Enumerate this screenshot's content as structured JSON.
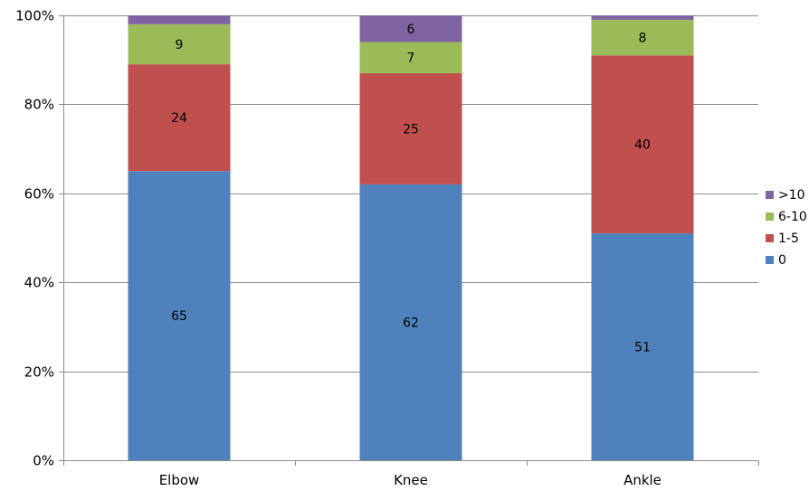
{
  "chart_data": {
    "type": "bar",
    "stacked": true,
    "percent_stacked": true,
    "categories": [
      "Elbow",
      "Knee",
      "Ankle"
    ],
    "series": [
      {
        "name": "0",
        "values": [
          65,
          62,
          51
        ],
        "color": "#4f81bd"
      },
      {
        "name": "1-5",
        "values": [
          24,
          25,
          40
        ],
        "color": "#c0504d"
      },
      {
        "name": "6-10",
        "values": [
          9,
          7,
          8
        ],
        "color": "#9bbb59"
      },
      {
        "name": ">10",
        "values": [
          2,
          6,
          1
        ],
        "color": "#8064a2"
      }
    ],
    "data_labels": [
      [
        "65",
        "62",
        "51"
      ],
      [
        "24",
        "25",
        "40"
      ],
      [
        "9",
        "7",
        "8"
      ],
      [
        "",
        "6",
        ""
      ]
    ],
    "ylim": [
      0,
      100
    ],
    "yticks": [
      "0%",
      "20%",
      "40%",
      "60%",
      "80%",
      "100%"
    ],
    "grid": true,
    "legend_position": "right",
    "legend_order": [
      ">10",
      "6-10",
      "1-5",
      "0"
    ],
    "title": "",
    "xlabel": "",
    "ylabel": ""
  }
}
